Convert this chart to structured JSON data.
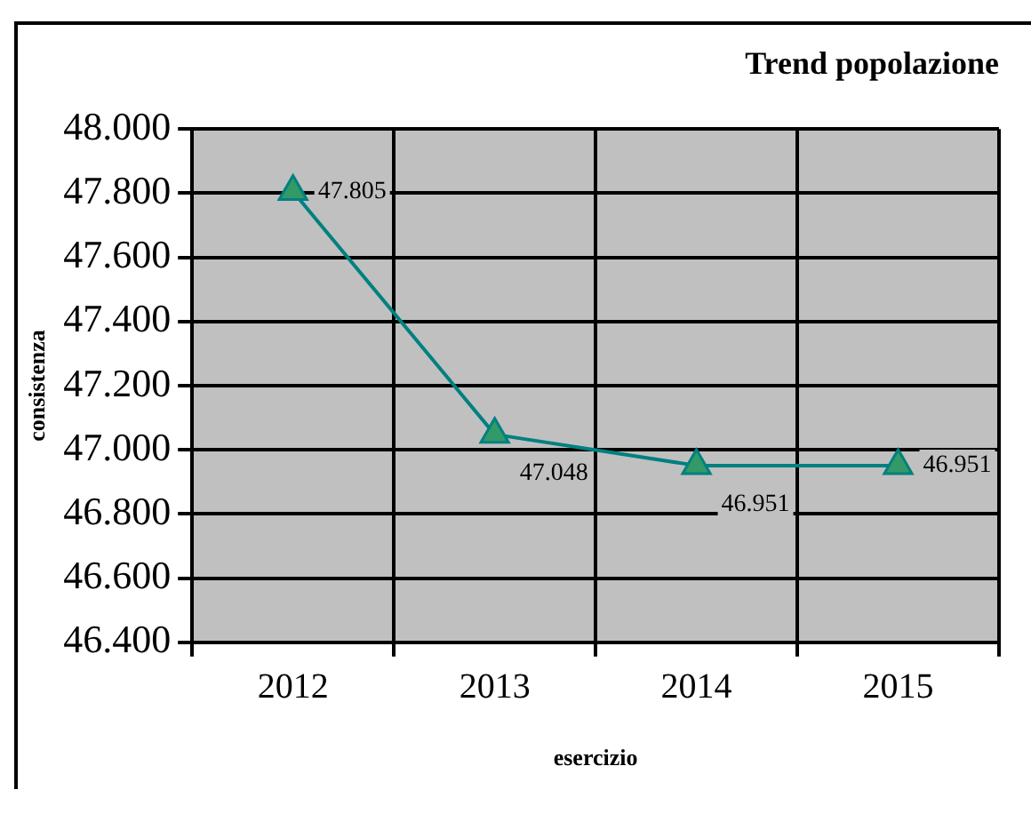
{
  "chart_data": {
    "type": "line",
    "title": "Trend popolazione",
    "xlabel": "esercizio",
    "ylabel": "consistenza",
    "categories": [
      "2012",
      "2013",
      "2014",
      "2015"
    ],
    "series": [
      {
        "color": "#008080",
        "colors": [
          "#339966",
          "#339966",
          "#339966",
          "#339966"
        ],
        "values": [
          47805,
          47048,
          46951,
          46951
        ],
        "value_labels": [
          "47.805",
          "47.048",
          "46.951",
          "46.951"
        ]
      }
    ],
    "ylim": [
      46400,
      48000
    ],
    "yticks": [
      {
        "value": 46400,
        "label": "46.400"
      },
      {
        "value": 46600,
        "label": "46.600"
      },
      {
        "value": 46800,
        "label": "46.800"
      },
      {
        "value": 47000,
        "label": "47.000"
      },
      {
        "value": 47200,
        "label": "47.200"
      },
      {
        "value": 47400,
        "label": "47.400"
      },
      {
        "value": 47600,
        "label": "47.600"
      },
      {
        "value": 47800,
        "label": "47.800"
      },
      {
        "value": 48000,
        "label": "48.000"
      }
    ],
    "grid": true,
    "marker": "triangle",
    "line_style": "solid"
  }
}
